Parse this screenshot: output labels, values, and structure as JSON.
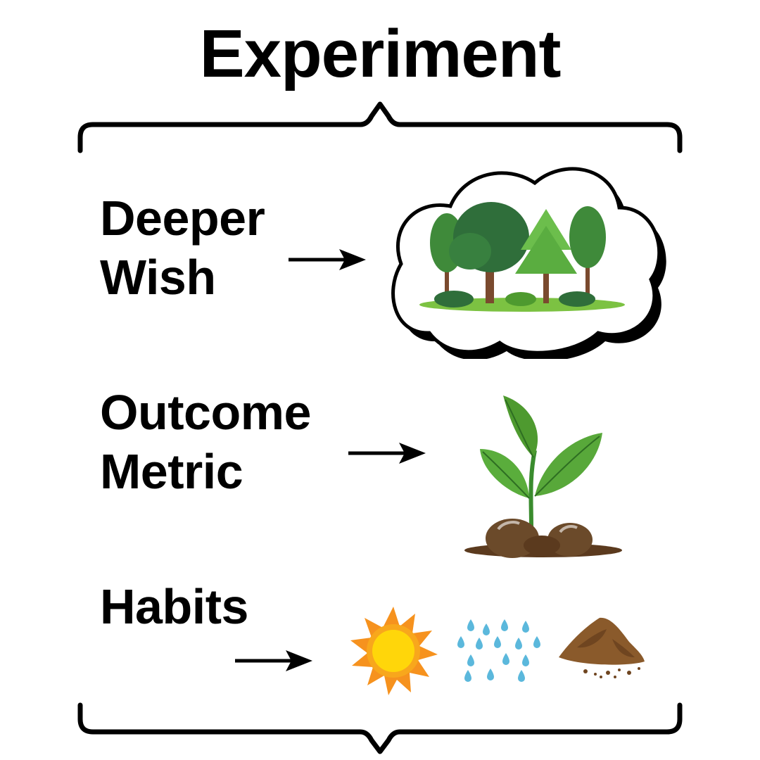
{
  "title": "Experiment",
  "rows": [
    {
      "line1": "Deeper",
      "line2": "Wish",
      "illustration": "forest-in-thought-cloud"
    },
    {
      "line1": "Outcome",
      "line2": "Metric",
      "illustration": "sprouting-seedling"
    },
    {
      "line1": "Habits",
      "line2": "",
      "illustration": "sun-rain-soil"
    }
  ],
  "colors": {
    "text": "#000000",
    "leaf_green": "#4e9a2f",
    "grass_green": "#7cc242",
    "trunk_brown": "#7a4a2e",
    "soil_brown": "#6b4a2a",
    "sun_yellow": "#ffd60a",
    "sun_orange": "#f6921e",
    "rain_blue": "#5bb8dc"
  }
}
